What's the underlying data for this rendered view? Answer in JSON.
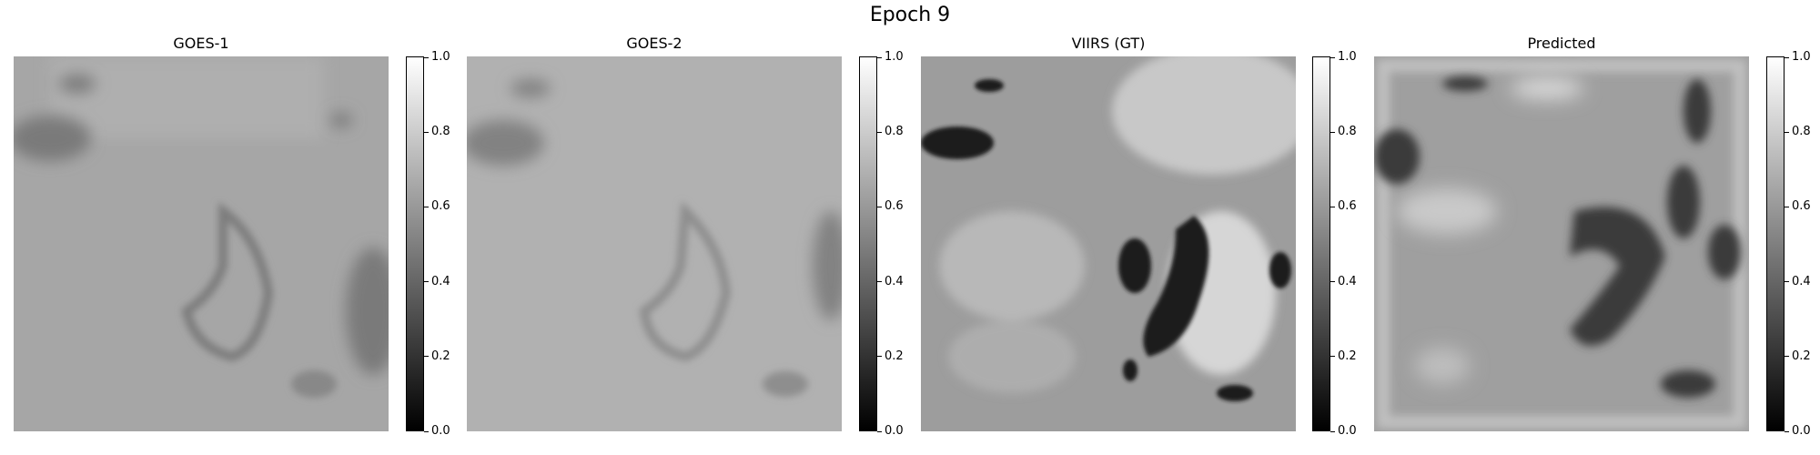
{
  "figure": {
    "suptitle": "Epoch 9"
  },
  "panels": [
    {
      "title": "GOES-1"
    },
    {
      "title": "GOES-2"
    },
    {
      "title": "VIIRS (GT)"
    },
    {
      "title": "Predicted"
    }
  ],
  "colorbar": {
    "ticks": [
      "0.0",
      "0.2",
      "0.4",
      "0.6",
      "0.8",
      "1.0"
    ],
    "colormap": [
      "#000000",
      "#ffffff"
    ]
  }
}
